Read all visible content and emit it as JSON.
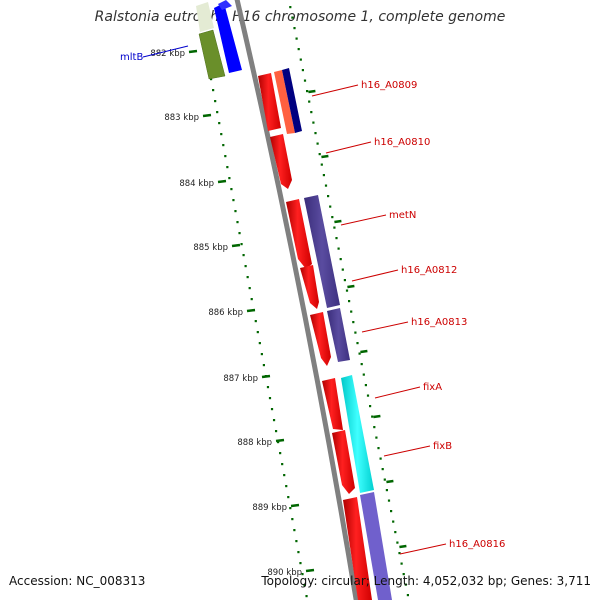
{
  "title": "Ralstonia eutropha H16 chromosome 1, complete genome",
  "footer": {
    "accession": "Accession: NC_008313",
    "summary": "Topology: circular; Length: 4,052,032 bp; Genes: 3,711"
  },
  "scale": {
    "unit": "kbp",
    "ticks": [
      "882 kbp",
      "883 kbp",
      "884 kbp",
      "885 kbp",
      "886 kbp",
      "887 kbp",
      "888 kbp",
      "889 kbp",
      "890 kbp"
    ]
  },
  "gene_labels": [
    {
      "text": "mltB",
      "color": "#0000cc"
    },
    {
      "text": "h16_A0809",
      "color": "#cc0000"
    },
    {
      "text": "h16_A0810",
      "color": "#cc0000"
    },
    {
      "text": "metN",
      "color": "#cc0000"
    },
    {
      "text": "h16_A0812",
      "color": "#cc0000"
    },
    {
      "text": "h16_A0813",
      "color": "#cc0000"
    },
    {
      "text": "fixA",
      "color": "#cc0000"
    },
    {
      "text": "fixB",
      "color": "#cc0000"
    },
    {
      "text": "h16_A0816",
      "color": "#cc0000"
    }
  ],
  "colors": {
    "cds": "#ff0000",
    "backbone": "#808080",
    "tick": "#006600",
    "mltB_feature": "#6a8f2a",
    "mltB_blue": "#0000ff",
    "h16_A0809_salmon": "#ff6040",
    "h16_A0809_navy": "#000080",
    "purple": "#4b3d8f",
    "cyan": "#00eeee",
    "lavender": "#7060cc"
  }
}
